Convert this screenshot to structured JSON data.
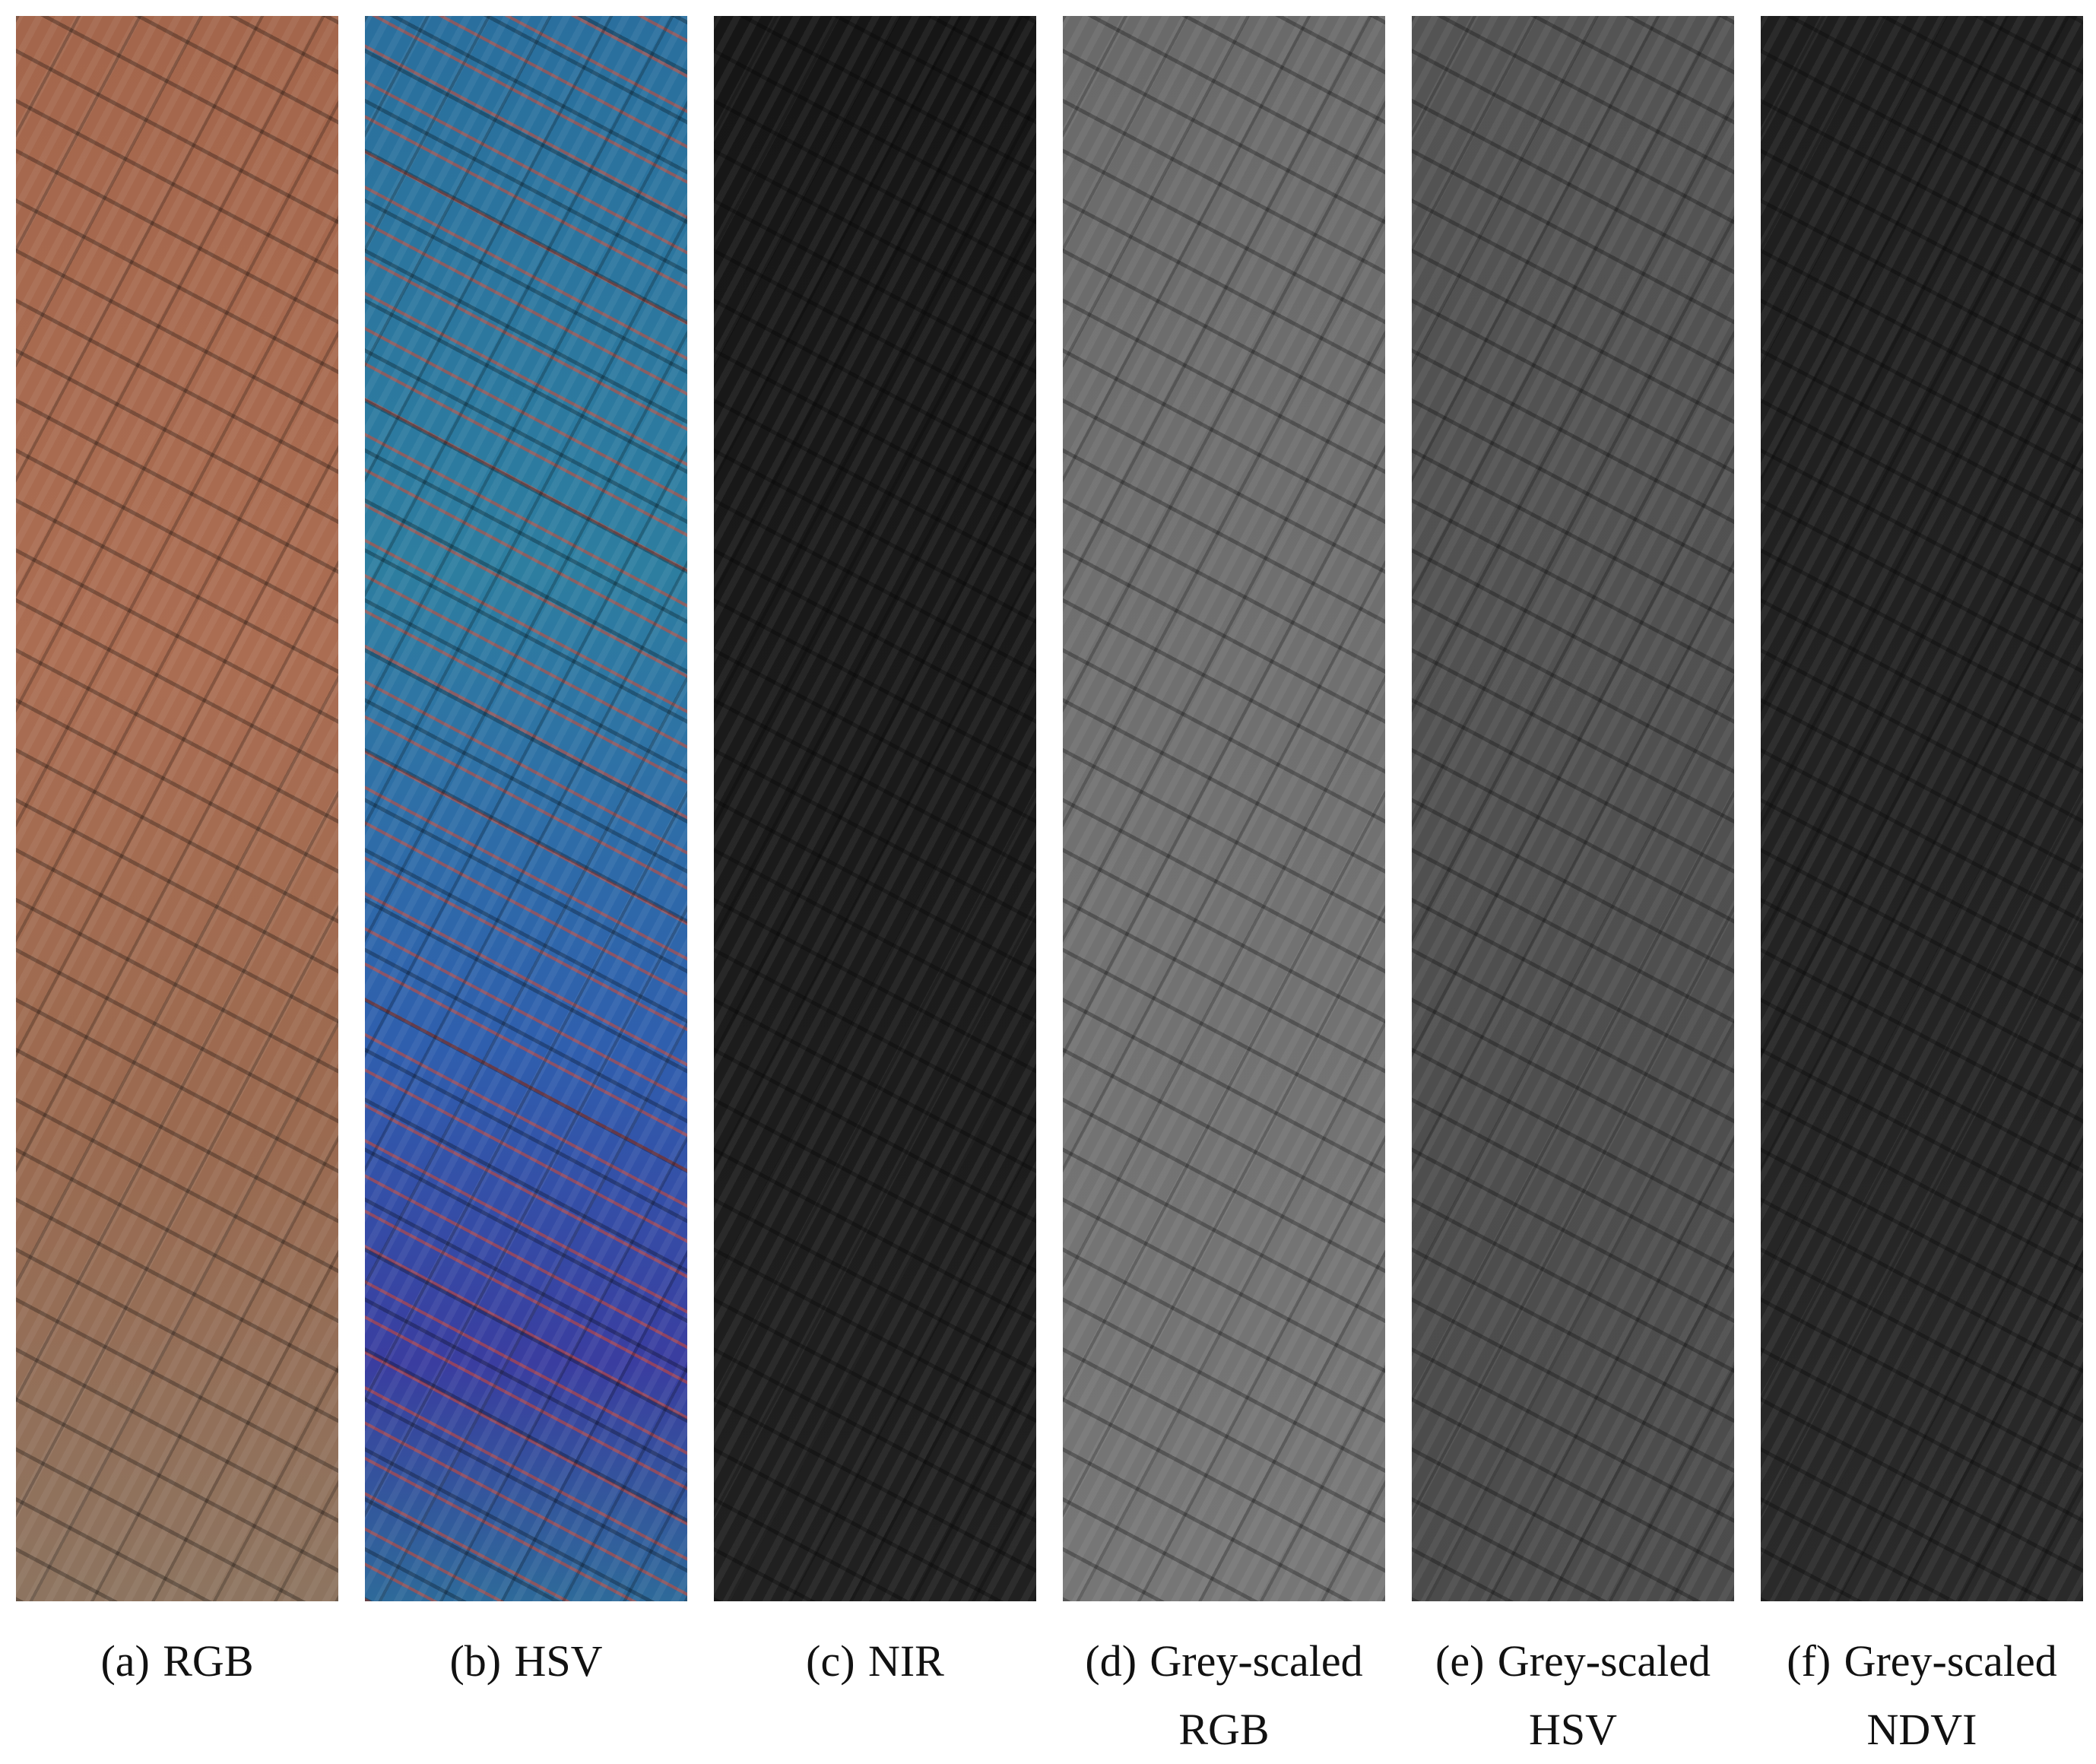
{
  "figure": {
    "panels": [
      {
        "label": "(a)",
        "caption_lines": [
          "RGB"
        ]
      },
      {
        "label": "(b)",
        "caption_lines": [
          "HSV"
        ]
      },
      {
        "label": "(c)",
        "caption_lines": [
          "NIR"
        ]
      },
      {
        "label": "(d)",
        "caption_lines": [
          "Grey-scaled",
          "RGB"
        ]
      },
      {
        "label": "(e)",
        "caption_lines": [
          "Grey-scaled",
          "HSV"
        ]
      },
      {
        "label": "(f)",
        "caption_lines": [
          "Grey-scaled",
          "NDVI"
        ]
      }
    ]
  }
}
